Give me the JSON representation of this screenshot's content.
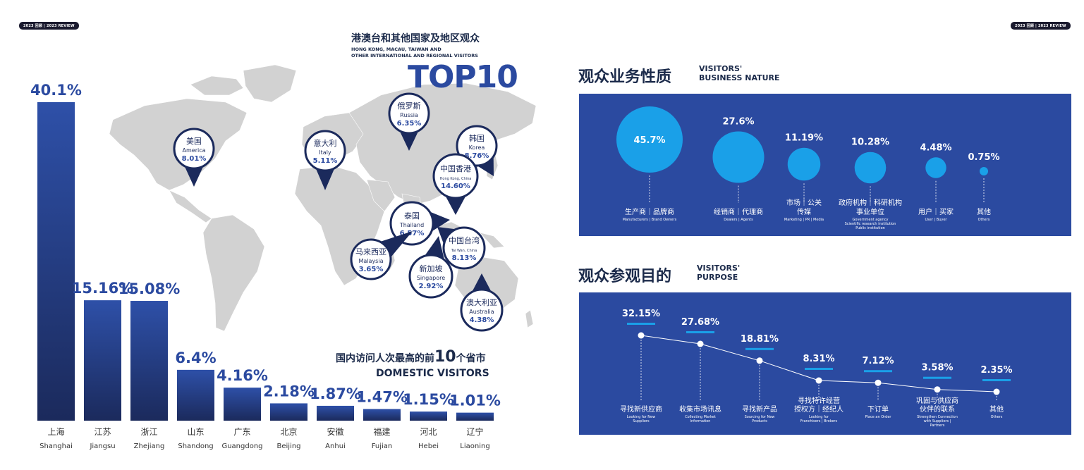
{
  "left": {
    "badge": "2023 回顾 | 2023 REVIEW",
    "map_title_cn": "港澳台和其他国家及地区观众",
    "map_title_en_1": "HONG KONG, MACAU, TAIWAN AND",
    "map_title_en_2": "OTHER INTERNATIONAL AND REGIONAL VISITORS",
    "top10": "TOP10",
    "domestic_title_cn_1": "国内访问人次最高的前",
    "domestic_title_cn_num": "10",
    "domestic_title_cn_2": "个省市",
    "domestic_title_en": "DOMESTIC VISITORS"
  },
  "right": {
    "badge": "2023 回顾 | 2023 REVIEW",
    "business_title_cn": "观众业务性质",
    "business_title_en_1": "VISITORS'",
    "business_title_en_2": "BUSINESS NATURE",
    "purpose_title_cn": "观众参观目的",
    "purpose_title_en_1": "VISITORS'",
    "purpose_title_en_2": "PURPOSE"
  },
  "colors": {
    "navy": "#1b2a5c",
    "panel_blue": "#2b4aa0",
    "bubble_blue": "#1aa0e8",
    "map_gray": "#d0d0d0"
  },
  "chart_data": [
    {
      "type": "bar",
      "title": "国内访问人次最高的前10个省市 DOMESTIC VISITORS",
      "categories": [
        "上海",
        "江苏",
        "浙江",
        "山东",
        "广东",
        "北京",
        "安徽",
        "福建",
        "河北",
        "辽宁"
      ],
      "categories_en": [
        "Shanghai",
        "Jiangsu",
        "Zhejiang",
        "Shandong",
        "Guangdong",
        "Beijing",
        "Anhui",
        "Fujian",
        "Hebei",
        "Liaoning"
      ],
      "values": [
        40.1,
        15.16,
        15.08,
        6.4,
        4.16,
        2.18,
        1.87,
        1.47,
        1.15,
        1.01
      ],
      "labels": [
        "40.1%",
        "15.16%",
        "15.08%",
        "6.4%",
        "4.16%",
        "2.18%",
        "1.87%",
        "1.47%",
        "1.15%",
        "1.01%"
      ],
      "ylim": [
        0,
        40.1
      ]
    },
    {
      "type": "table",
      "title": "港澳台和其他国家及地区观众 TOP10",
      "items": [
        {
          "cn": "美国",
          "en": "America",
          "value": 8.01,
          "label": "8.01%"
        },
        {
          "cn": "意大利",
          "en": "Italy",
          "value": 5.11,
          "label": "5.11%"
        },
        {
          "cn": "俄罗斯",
          "en": "Russia",
          "value": 6.35,
          "label": "6.35%"
        },
        {
          "cn": "韩国",
          "en": "Korea",
          "value": 8.76,
          "label": "8.76%"
        },
        {
          "cn": "中国香港",
          "en": "Hong Kong, China",
          "value": 14.6,
          "label": "14.60%"
        },
        {
          "cn": "泰国",
          "en": "Thailand",
          "value": 6.57,
          "label": "6.57%"
        },
        {
          "cn": "中国台湾",
          "en": "Tai Wan, China",
          "value": 8.13,
          "label": "8.13%"
        },
        {
          "cn": "马来西亚",
          "en": "Malaysia",
          "value": 3.65,
          "label": "3.65%"
        },
        {
          "cn": "新加坡",
          "en": "Singapore",
          "value": 2.92,
          "label": "2.92%"
        },
        {
          "cn": "澳大利亚",
          "en": "Australia",
          "value": 4.38,
          "label": "4.38%"
        }
      ]
    },
    {
      "type": "scatter",
      "title": "观众业务性质 VISITORS' BUSINESS NATURE",
      "items": [
        {
          "cn": "生产商｜品牌商",
          "en": "Manufacturers | Brand Owners",
          "value": 45.7,
          "label": "45.7%"
        },
        {
          "cn": "经销商｜代理商",
          "en": "Dealers | Agents",
          "value": 27.6,
          "label": "27.6%"
        },
        {
          "cn": "市场｜公关 传媒",
          "en": "Marketing | PR | Media",
          "value": 11.19,
          "label": "11.19%"
        },
        {
          "cn": "政府机构｜科研机构 事业单位",
          "en": "Government agency / Scientific research institution / Public institution",
          "value": 10.28,
          "label": "10.28%"
        },
        {
          "cn": "用户｜买家",
          "en": "User | Buyer",
          "value": 4.48,
          "label": "4.48%"
        },
        {
          "cn": "其他",
          "en": "Others",
          "value": 0.75,
          "label": "0.75%"
        }
      ]
    },
    {
      "type": "line",
      "title": "观众参观目的 VISITORS' PURPOSE",
      "items": [
        {
          "cn": "寻找新供应商",
          "en": "Looking for New Suppliers",
          "value": 32.15,
          "label": "32.15%"
        },
        {
          "cn": "收集市场讯息",
          "en": "Collecting Market Information",
          "value": 27.68,
          "label": "27.68%"
        },
        {
          "cn": "寻找新产品",
          "en": "Sourcing for New Products",
          "value": 18.81,
          "label": "18.81%"
        },
        {
          "cn": "寻找特许经营 授权方｜经纪人",
          "en": "Looking for Franchisors | Brokers",
          "value": 8.31,
          "label": "8.31%"
        },
        {
          "cn": "下订单",
          "en": "Place an Order",
          "value": 7.12,
          "label": "7.12%"
        },
        {
          "cn": "巩固与供应商 伙伴的联系",
          "en": "Strengthen Connection with Suppliers | Partners",
          "value": 3.58,
          "label": "3.58%"
        },
        {
          "cn": "其他",
          "en": "Others",
          "value": 2.35,
          "label": "2.35%"
        }
      ]
    }
  ]
}
